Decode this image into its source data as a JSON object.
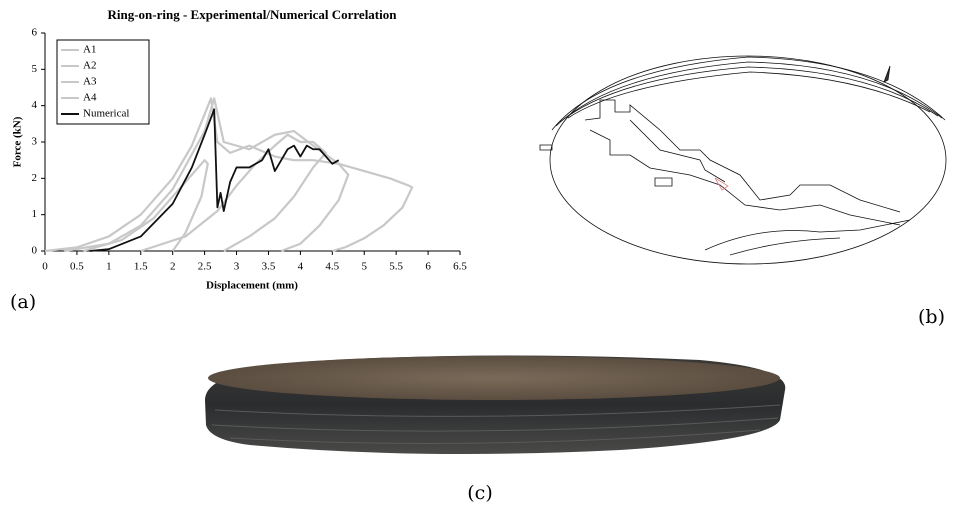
{
  "chart_data": {
    "type": "line",
    "title": "Ring-on-ring - Experimental/Numerical Correlation",
    "xlabel": "Displacement (mm)",
    "ylabel": "Force (kN)",
    "xlim": [
      0,
      6.5
    ],
    "ylim": [
      0,
      6
    ],
    "xticks": [
      0,
      0.5,
      1,
      1.5,
      2,
      2.5,
      3,
      3.5,
      4,
      4.5,
      5,
      5.5,
      6,
      6.5
    ],
    "yticks": [
      0,
      1,
      2,
      3,
      4,
      5,
      6
    ],
    "legend": "top-left",
    "grid": false,
    "series": [
      {
        "name": "A1",
        "color": "#c8c8c8",
        "x": [
          0,
          0.5,
          1,
          1.5,
          2,
          2.3,
          2.6,
          2.7,
          2.9,
          3.2,
          3.6,
          3.9,
          4.2,
          4.6,
          5.0,
          5.4,
          5.7,
          5.75,
          5.6,
          5.3,
          5.0,
          4.7,
          4.5
        ],
        "values": [
          0,
          0.1,
          0.4,
          1.0,
          2.0,
          2.9,
          4.2,
          3.0,
          2.7,
          2.9,
          2.6,
          2.5,
          2.5,
          2.4,
          2.2,
          2.0,
          1.8,
          1.75,
          1.2,
          0.7,
          0.35,
          0.1,
          0
        ]
      },
      {
        "name": "A2",
        "color": "#c8c8c8",
        "x": [
          0.3,
          1,
          1.5,
          2,
          2.5,
          2.65,
          2.8,
          3.2,
          3.6,
          3.9,
          4.2,
          4.6,
          4.75,
          4.6,
          4.3,
          4.0,
          3.7
        ],
        "values": [
          0,
          0.2,
          0.7,
          1.7,
          3.3,
          4.2,
          3.0,
          2.8,
          3.2,
          3.3,
          2.9,
          2.4,
          2.1,
          1.4,
          0.7,
          0.2,
          0
        ]
      },
      {
        "name": "A3",
        "color": "#c8c8c8",
        "x": [
          0.6,
          1.2,
          1.7,
          2.2,
          2.5,
          2.55,
          2.45,
          2.2,
          2.0
        ],
        "values": [
          0,
          0.3,
          0.9,
          1.9,
          2.5,
          2.4,
          1.5,
          0.5,
          0
        ]
      },
      {
        "name": "A4",
        "color": "#c8c8c8",
        "x": [
          1.5,
          2.2,
          2.7,
          3.0,
          3.3,
          3.6,
          3.8,
          4.0,
          4.2,
          4.4,
          4.2,
          3.9,
          3.6,
          3.2,
          2.8
        ],
        "values": [
          0,
          0.4,
          1.1,
          1.8,
          2.4,
          2.9,
          3.2,
          3.0,
          3.0,
          2.7,
          2.3,
          1.5,
          0.9,
          0.4,
          0
        ]
      },
      {
        "name": "Numerical",
        "color": "#111111",
        "x": [
          0.7,
          1,
          1.5,
          2,
          2.3,
          2.5,
          2.65,
          2.7,
          2.75,
          2.8,
          2.9,
          3.0,
          3.2,
          3.4,
          3.5,
          3.6,
          3.7,
          3.8,
          3.9,
          4.0,
          4.1,
          4.2,
          4.3,
          4.4,
          4.5,
          4.6
        ],
        "values": [
          0,
          0.05,
          0.4,
          1.3,
          2.3,
          3.2,
          3.9,
          1.2,
          1.6,
          1.1,
          1.9,
          2.3,
          2.3,
          2.5,
          2.8,
          2.2,
          2.5,
          2.8,
          2.9,
          2.6,
          2.9,
          2.8,
          2.8,
          2.6,
          2.4,
          2.5
        ]
      }
    ]
  },
  "figure_labels": [
    "(a)",
    "(b)",
    "(c)"
  ]
}
